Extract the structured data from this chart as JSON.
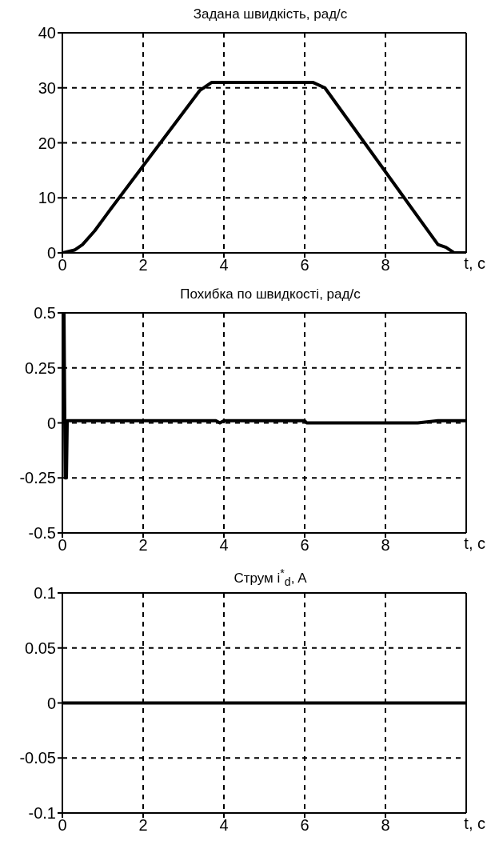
{
  "chart_data": [
    {
      "type": "line",
      "title": "Задана швидкість, рад/с",
      "xlabel": "t, c",
      "x": [
        0,
        0.3,
        0.5,
        0.8,
        1.1,
        1.2,
        3.4,
        3.7,
        6.2,
        6.5,
        9.3,
        9.5,
        9.7,
        10
      ],
      "series": [
        {
          "color": "#000000",
          "values": [
            0,
            0.5,
            1.5,
            4,
            7,
            8,
            29.5,
            31,
            31,
            30,
            1.5,
            1,
            0,
            0
          ]
        }
      ],
      "xlim": [
        0,
        10
      ],
      "xticks": [
        0,
        2,
        4,
        6,
        8
      ],
      "ylim": [
        0,
        40
      ],
      "yticks": [
        0,
        10,
        20,
        30,
        40
      ],
      "grid": true,
      "marker": "none",
      "line_style": "solid"
    },
    {
      "type": "line",
      "title": "Похибка по швидкості, рад/с",
      "xlabel": "t, c",
      "x": [
        0,
        0.04,
        0.07,
        0.1,
        0.12,
        3.8,
        3.9,
        4,
        6,
        6.05,
        8.8,
        9.3,
        10
      ],
      "series": [
        {
          "color": "#000000",
          "values": [
            0.5,
            0.5,
            -0.25,
            -0.25,
            0.01,
            0.01,
            0,
            0.01,
            0.01,
            0,
            0,
            0.01,
            0.01
          ]
        }
      ],
      "xlim": [
        0,
        10
      ],
      "xticks": [
        0,
        2,
        4,
        6,
        8
      ],
      "ylim": [
        -0.5,
        0.5
      ],
      "yticks": [
        -0.5,
        -0.25,
        0,
        0.25,
        0.5
      ],
      "grid": true,
      "marker": "none",
      "line_style": "solid"
    },
    {
      "type": "line",
      "title": "Струм i$^{*}$$_{d}$, A",
      "xlabel": "t, c",
      "x": [
        0,
        10
      ],
      "series": [
        {
          "color": "#000000",
          "values": [
            0,
            0
          ]
        }
      ],
      "xlim": [
        0,
        10
      ],
      "xticks": [
        0,
        2,
        4,
        6,
        8
      ],
      "ylim": [
        -0.1,
        0.1
      ],
      "yticks": [
        -0.1,
        -0.05,
        0,
        0.05,
        0.1
      ],
      "grid": true,
      "marker": "none",
      "line_style": "solid"
    }
  ]
}
